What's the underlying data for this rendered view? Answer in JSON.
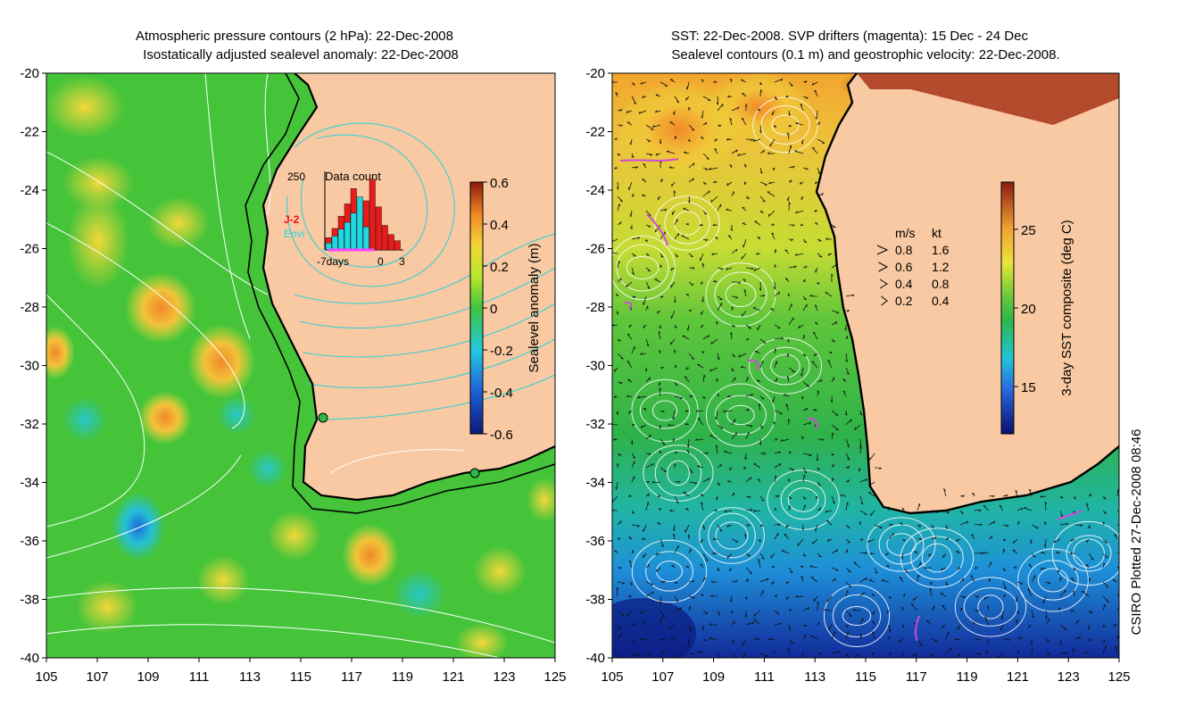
{
  "left_panel": {
    "title_line1": "Atmospheric pressure contours (2 hPa): 22-Dec-2008",
    "title_line2": "Isostatically adjusted sealevel anomaly: 22-Dec-2008",
    "colorbar": {
      "label": "Sealevel anomaly (m)",
      "ticks": [
        "0.6",
        "0.4",
        "0.2",
        "0",
        "-0.2",
        "-0.4",
        "-0.6"
      ],
      "range": [
        -0.6,
        0.6
      ]
    },
    "inset": {
      "title": "Data count",
      "max_label": "250",
      "x_labels": [
        "-7days",
        "0",
        "3"
      ],
      "legend": [
        {
          "name": "J-2",
          "color": "#ee1111"
        },
        {
          "name": "Envi",
          "color": "#22dddd"
        }
      ],
      "bars_red": [
        40,
        70,
        110,
        150,
        200,
        120,
        160,
        230,
        140,
        80,
        50,
        30
      ],
      "bars_cyan": [
        30,
        60,
        90,
        120,
        160,
        230,
        100,
        0,
        0,
        0,
        0,
        0
      ]
    }
  },
  "right_panel": {
    "title_line1": "SST: 22-Dec-2008. SVP drifters (magenta): 15 Dec - 24 Dec",
    "title_line2": "Sealevel contours (0.1 m) and geostrophic velocity: 22-Dec-2008.",
    "colorbar": {
      "label": "3-day SST composite (deg C)",
      "ticks": [
        "25",
        "20",
        "15"
      ],
      "range": [
        12,
        28
      ]
    },
    "speed_legend": {
      "header_ms": "m/s",
      "header_kt": "kt",
      "rows": [
        {
          "ms": "0.8",
          "kt": "1.6"
        },
        {
          "ms": "0.6",
          "kt": "1.2"
        },
        {
          "ms": "0.4",
          "kt": "0.8"
        },
        {
          "ms": "0.2",
          "kt": "0.4"
        }
      ]
    }
  },
  "axes": {
    "lat_ticks": [
      "-20",
      "-22",
      "-24",
      "-26",
      "-28",
      "-30",
      "-32",
      "-34",
      "-36",
      "-38",
      "-40"
    ],
    "lon_ticks": [
      "105",
      "107",
      "109",
      "111",
      "113",
      "115",
      "117",
      "119",
      "121",
      "123",
      "125"
    ],
    "lat_range": [
      -40,
      -20
    ],
    "lon_range": [
      105,
      125
    ]
  },
  "credit": "CSIRO Plotted 27-Dec-2008 08:46",
  "colors": {
    "land": "#f8c9a2",
    "contour_left": "#37d0d4"
  }
}
